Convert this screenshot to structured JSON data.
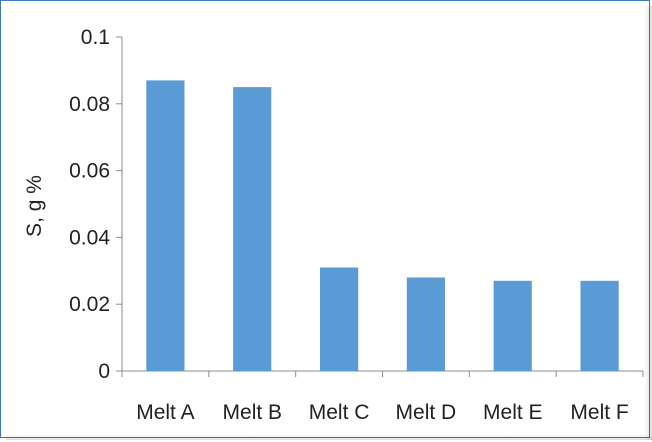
{
  "chart_data": {
    "type": "bar",
    "title": "",
    "xlabel": "",
    "ylabel": "S, g %",
    "categories": [
      "Melt A",
      "Melt B",
      "Melt C",
      "Melt D",
      "Melt E",
      "Melt F"
    ],
    "values": [
      0.087,
      0.085,
      0.031,
      0.028,
      0.027,
      0.027
    ],
    "ylim": [
      0,
      0.1
    ],
    "yticks": [
      "0",
      "0.02",
      "0.04",
      "0.06",
      "0.08",
      "0.1"
    ],
    "ytick_values": [
      0,
      0.02,
      0.04,
      0.06,
      0.08,
      0.1
    ],
    "grid": false,
    "legend": "none",
    "bar_color": "#5b9bd5",
    "border_color": "#3a7bbf"
  }
}
